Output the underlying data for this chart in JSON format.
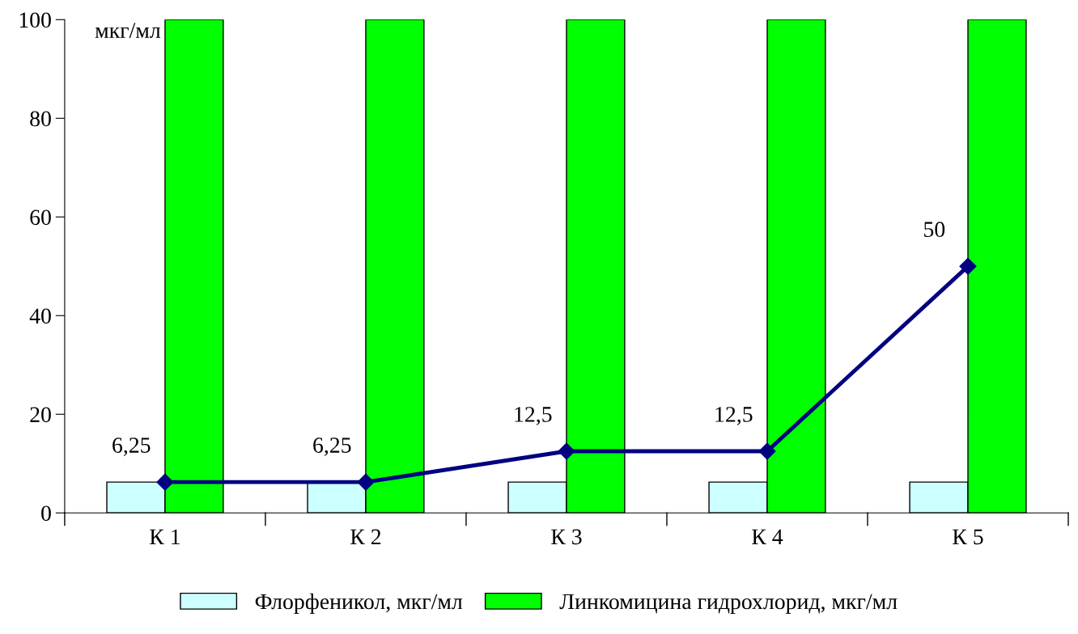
{
  "chart_data": {
    "type": "bar",
    "categories": [
      "К 1",
      "К 2",
      "К 3",
      "К 4",
      "К 5"
    ],
    "series": [
      {
        "name": "Флорфеникол, мкг/мл",
        "color": "#ccffff",
        "values": [
          6.25,
          6.25,
          6.25,
          6.25,
          6.25
        ]
      },
      {
        "name": "Линкомицина гидрохлорид, мкг/мл",
        "color": "#00ff00",
        "values": [
          100,
          100,
          100,
          100,
          100
        ]
      },
      {
        "type": "line",
        "color": "#000080",
        "values": [
          6.25,
          6.25,
          12.5,
          12.5,
          50
        ],
        "value_labels": [
          "6,25",
          "6,25",
          "12,5",
          "12,5",
          "50"
        ],
        "marker": "diamond",
        "line_style": "solid"
      }
    ],
    "ylim": [
      0,
      100
    ],
    "yticks": [
      0,
      20,
      40,
      60,
      80,
      100
    ],
    "grid": false,
    "legend": "bottom",
    "annotations": [
      "мкг/мл"
    ]
  }
}
